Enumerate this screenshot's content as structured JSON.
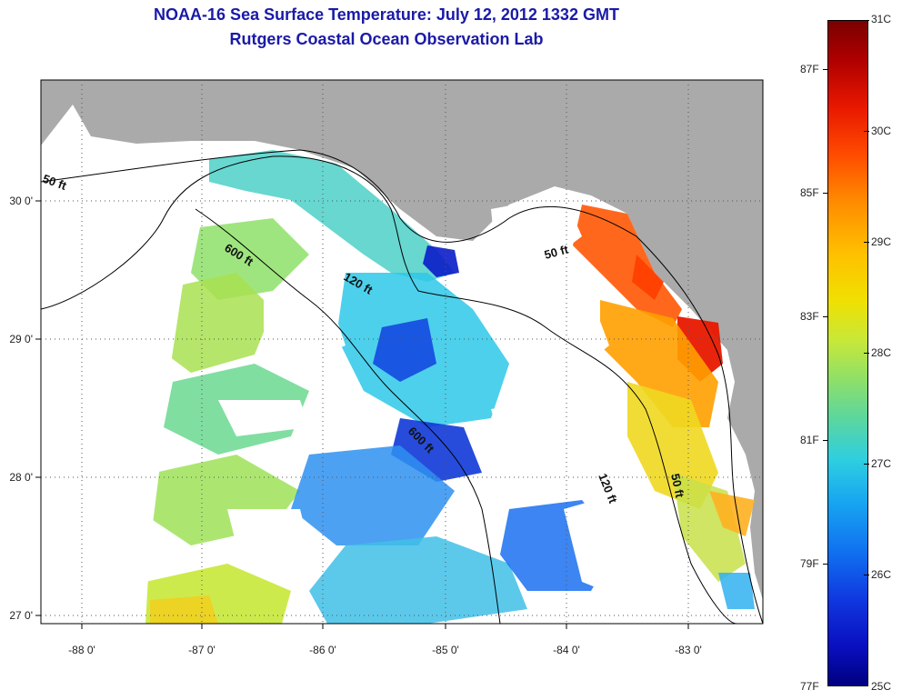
{
  "title": {
    "line1": "NOAA-16 Sea Surface Temperature:  July 12, 2012 1332 GMT",
    "line2": "Rutgers Coastal Ocean Observation Lab"
  },
  "map": {
    "lon_labels": [
      "-88 0'",
      "-87 0'",
      "-86 0'",
      "-85 0'",
      "-84 0'",
      "-83 0'"
    ],
    "lat_labels": [
      "30 0'",
      "29 0'",
      "28 0'",
      "27 0'"
    ],
    "isobath_labels": [
      "50 ft",
      "600 ft",
      "120 ft",
      "50 ft",
      "600 ft",
      "120 ft",
      "50 ft"
    ]
  },
  "colorbar": {
    "celsius_labels": [
      "31C",
      "30C",
      "29C",
      "28C",
      "27C",
      "26C",
      "25C"
    ],
    "fahrenheit_labels": [
      "87F",
      "85F",
      "83F",
      "81F",
      "79F",
      "77F"
    ],
    "colors": {
      "hot": "#7a0000",
      "warm": "#ff8a00",
      "mid": "#f0e000",
      "cool": "#2ecfe0",
      "cold": "#000080",
      "land": "#aaaaaa"
    }
  }
}
